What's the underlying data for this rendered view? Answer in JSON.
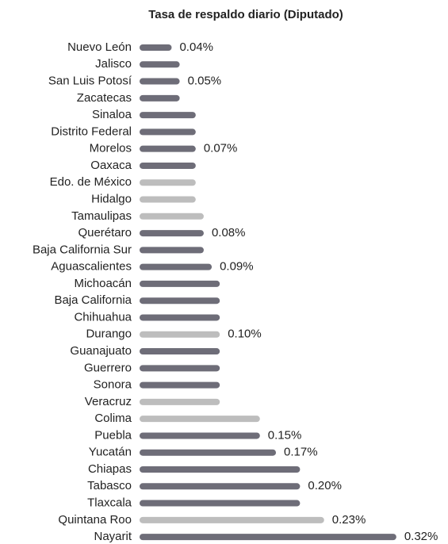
{
  "chart_data": {
    "type": "bar",
    "orientation": "horizontal",
    "title": "Tasa de respaldo diario (Diputado)",
    "categories": [
      "Nuevo León",
      "Jalisco",
      "San Luis Potosí",
      "Zacatecas",
      "Sinaloa",
      "Distrito Federal",
      "Morelos",
      "Oaxaca",
      "Edo. de México",
      "Hidalgo",
      "Tamaulipas",
      "Querétaro",
      "Baja California Sur",
      "Aguascalientes",
      "Michoacán",
      "Baja California",
      "Chihuahua",
      "Durango",
      "Guanajuato",
      "Guerrero",
      "Sonora",
      "Veracruz",
      "Colima",
      "Puebla",
      "Yucatán",
      "Chiapas",
      "Tabasco",
      "Tlaxcala",
      "Quintana Roo",
      "Nayarit"
    ],
    "values": [
      0.04,
      0.05,
      0.05,
      0.05,
      0.07,
      0.07,
      0.07,
      0.07,
      0.07,
      0.07,
      0.08,
      0.08,
      0.08,
      0.09,
      0.1,
      0.1,
      0.1,
      0.1,
      0.1,
      0.1,
      0.1,
      0.1,
      0.15,
      0.15,
      0.17,
      0.2,
      0.2,
      0.2,
      0.23,
      0.32
    ],
    "value_labels": [
      "0.04%",
      null,
      "0.05%",
      null,
      null,
      null,
      "0.07%",
      null,
      null,
      null,
      null,
      "0.08%",
      null,
      "0.09%",
      null,
      null,
      null,
      "0.10%",
      null,
      null,
      null,
      null,
      null,
      "0.15%",
      "0.17%",
      null,
      "0.20%",
      null,
      "0.23%",
      "0.32%"
    ],
    "colors": [
      "#6e6d78",
      "#6e6d78",
      "#6e6d78",
      "#6e6d78",
      "#6e6d78",
      "#6e6d78",
      "#6e6d78",
      "#6e6d78",
      "#bdbdbd",
      "#bdbdbd",
      "#bdbdbd",
      "#6e6d78",
      "#6e6d78",
      "#6e6d78",
      "#6e6d78",
      "#6e6d78",
      "#6e6d78",
      "#bdbdbd",
      "#6e6d78",
      "#6e6d78",
      "#6e6d78",
      "#bdbdbd",
      "#bdbdbd",
      "#6e6d78",
      "#6e6d78",
      "#6e6d78",
      "#6e6d78",
      "#6e6d78",
      "#bdbdbd",
      "#6e6d78"
    ]
  }
}
